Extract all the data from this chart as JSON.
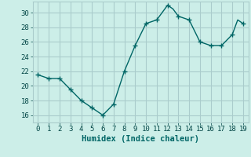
{
  "x": [
    0,
    1,
    2,
    3,
    4,
    5,
    6,
    7,
    8,
    9,
    10,
    11,
    12,
    12.5,
    13,
    14,
    15,
    16,
    16.5,
    17,
    18,
    18.5,
    19
  ],
  "y": [
    21.5,
    21.0,
    21.0,
    19.5,
    18.0,
    17.0,
    16.0,
    17.5,
    22.0,
    25.5,
    28.5,
    29.0,
    31.0,
    30.5,
    29.5,
    29.0,
    26.0,
    25.5,
    25.5,
    25.5,
    27.0,
    29.0,
    28.5
  ],
  "marker_x": [
    0,
    1,
    2,
    3,
    4,
    5,
    6,
    7,
    8,
    9,
    10,
    11,
    12,
    13,
    14,
    15,
    16,
    17,
    18,
    19
  ],
  "marker_y": [
    21.5,
    21.0,
    21.0,
    19.5,
    18.0,
    17.0,
    16.0,
    17.5,
    22.0,
    25.5,
    28.5,
    29.0,
    31.0,
    29.5,
    29.0,
    26.0,
    25.5,
    25.5,
    27.0,
    28.5
  ],
  "line_color": "#006666",
  "marker_color": "#006666",
  "bg_color": "#cceee8",
  "grid_color": "#aacccc",
  "xlabel": "Humidex (Indice chaleur)",
  "xlim": [
    -0.5,
    19.5
  ],
  "ylim": [
    15.0,
    31.5
  ],
  "yticks": [
    16,
    18,
    20,
    22,
    24,
    26,
    28,
    30
  ],
  "xticks": [
    0,
    1,
    2,
    3,
    4,
    5,
    6,
    7,
    8,
    9,
    10,
    11,
    12,
    13,
    14,
    15,
    16,
    17,
    18,
    19
  ],
  "xlabel_fontsize": 7.5,
  "tick_fontsize": 6.5
}
